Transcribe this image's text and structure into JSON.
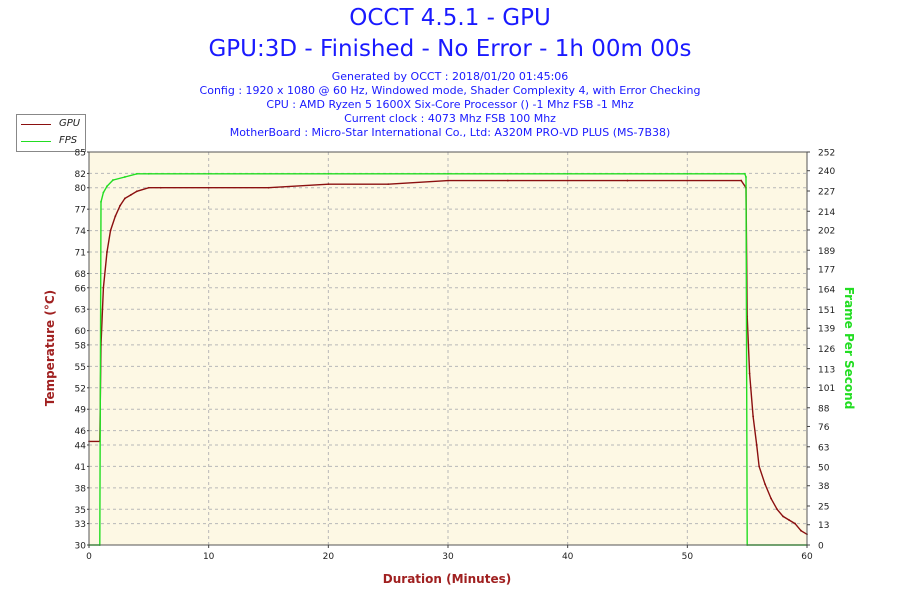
{
  "header": {
    "title": "OCCT 4.5.1 - GPU",
    "subtitle": "GPU:3D - Finished - No Error - 1h 00m 00s",
    "info_lines": [
      "Generated by OCCT : 2018/01/20 01:45:06",
      "Config : 1920 x 1080 @ 60 Hz, Windowed mode, Shader Complexity 4, with Error Checking",
      "CPU : AMD Ryzen 5 1600X Six-Core Processor () -1 Mhz FSB -1 Mhz",
      "Current clock : 4073 Mhz FSB 100 Mhz",
      "MotherBoard : Micro-Star International Co., Ltd: A320M PRO-VD PLUS (MS-7B38)"
    ]
  },
  "colors": {
    "gpu": "#8b1010",
    "fps": "#22dd22",
    "plot_bg": "#fdf8e4",
    "grid": "#b8b8b8",
    "left_axis_label": "#a02020",
    "right_axis_label": "#22dd22",
    "x_axis_label": "#a02020",
    "title": "#1a1aff"
  },
  "chart_data": {
    "type": "line",
    "xlabel": "Duration (Minutes)",
    "ylabel_left": "Temperature (°C)",
    "ylabel_right": "Frame Per Second",
    "xlim": [
      0,
      60
    ],
    "ylim_left": [
      30,
      85
    ],
    "ylim_right": [
      0,
      252
    ],
    "x_ticks": [
      0,
      10,
      20,
      30,
      40,
      50,
      60
    ],
    "y_ticks_left": [
      30,
      33,
      35,
      38,
      41,
      44,
      46,
      49,
      52,
      55,
      58,
      60,
      63,
      66,
      68,
      71,
      74,
      77,
      80,
      82,
      85
    ],
    "y_ticks_right": [
      0,
      13,
      25,
      38,
      50,
      63,
      76,
      88,
      101,
      113,
      126,
      139,
      151,
      164,
      177,
      189,
      202,
      214,
      227,
      240,
      252
    ],
    "grid": true,
    "legend_position": "top-left",
    "series": [
      {
        "name": "GPU",
        "axis": "left",
        "x": [
          0,
          0.9,
          1.0,
          1.2,
          1.5,
          1.8,
          2.2,
          2.6,
          3.0,
          3.5,
          4.0,
          5.0,
          6.0,
          10.0,
          15.0,
          20.0,
          25.0,
          30.0,
          35.0,
          40.0,
          45.0,
          50.0,
          54.5,
          54.9,
          55.0,
          55.2,
          55.5,
          55.8,
          56.0,
          56.5,
          57.0,
          57.5,
          58.0,
          58.5,
          59.0,
          59.5,
          60.0
        ],
        "values": [
          44.5,
          44.5,
          58,
          66,
          71,
          74,
          76,
          77.5,
          78.5,
          79,
          79.5,
          80,
          80,
          80,
          80,
          80.5,
          80.5,
          81,
          81,
          81,
          81,
          81,
          81,
          80,
          62,
          54,
          48,
          44,
          41,
          38.5,
          36.5,
          35,
          34,
          33.5,
          33,
          32,
          31.5
        ]
      },
      {
        "name": "FPS",
        "axis": "right",
        "x": [
          0,
          0.9,
          1.0,
          1.2,
          1.5,
          2.0,
          3.0,
          4.0,
          5.0,
          10.0,
          20.0,
          30.0,
          40.0,
          50.0,
          54.8,
          54.9,
          55.0,
          60.0
        ],
        "values": [
          0,
          0,
          220,
          226,
          230,
          234,
          236,
          238,
          238,
          238,
          238,
          238,
          238,
          238,
          238,
          236,
          0,
          0
        ]
      }
    ]
  }
}
